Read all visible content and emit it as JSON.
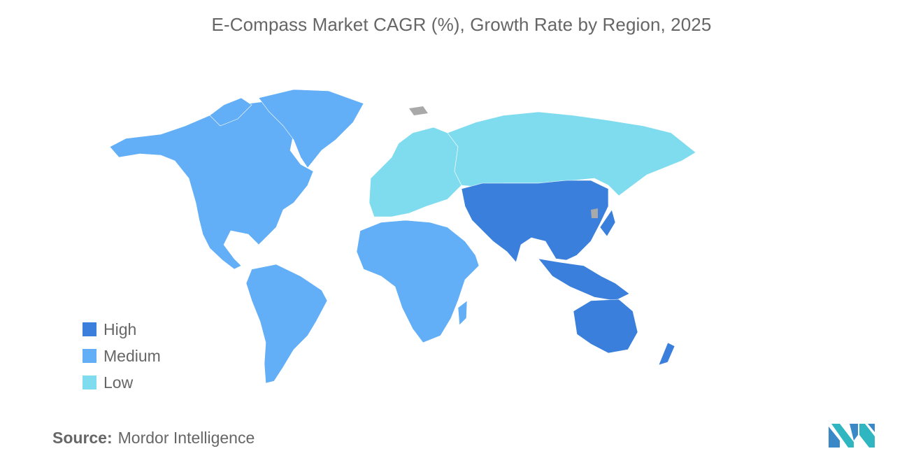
{
  "title": "E-Compass Market CAGR (%), Growth Rate by Region, 2025",
  "legend": [
    {
      "label": "High",
      "color": "#3a7fdb"
    },
    {
      "label": "Medium",
      "color": "#62aef7"
    },
    {
      "label": "Low",
      "color": "#7fdcef"
    }
  ],
  "colors": {
    "no_data": "#a9a9a9"
  },
  "regions": [
    {
      "name": "North America",
      "level": "Medium"
    },
    {
      "name": "South America",
      "level": "Medium"
    },
    {
      "name": "Europe",
      "level": "Low"
    },
    {
      "name": "Russia",
      "level": "Low"
    },
    {
      "name": "Middle East and Africa",
      "level": "Medium"
    },
    {
      "name": "Asia-Pacific",
      "level": "High"
    }
  ],
  "source": {
    "label": "Source:",
    "value": "Mordor Intelligence"
  },
  "logo": "mordor-intelligence-logo"
}
